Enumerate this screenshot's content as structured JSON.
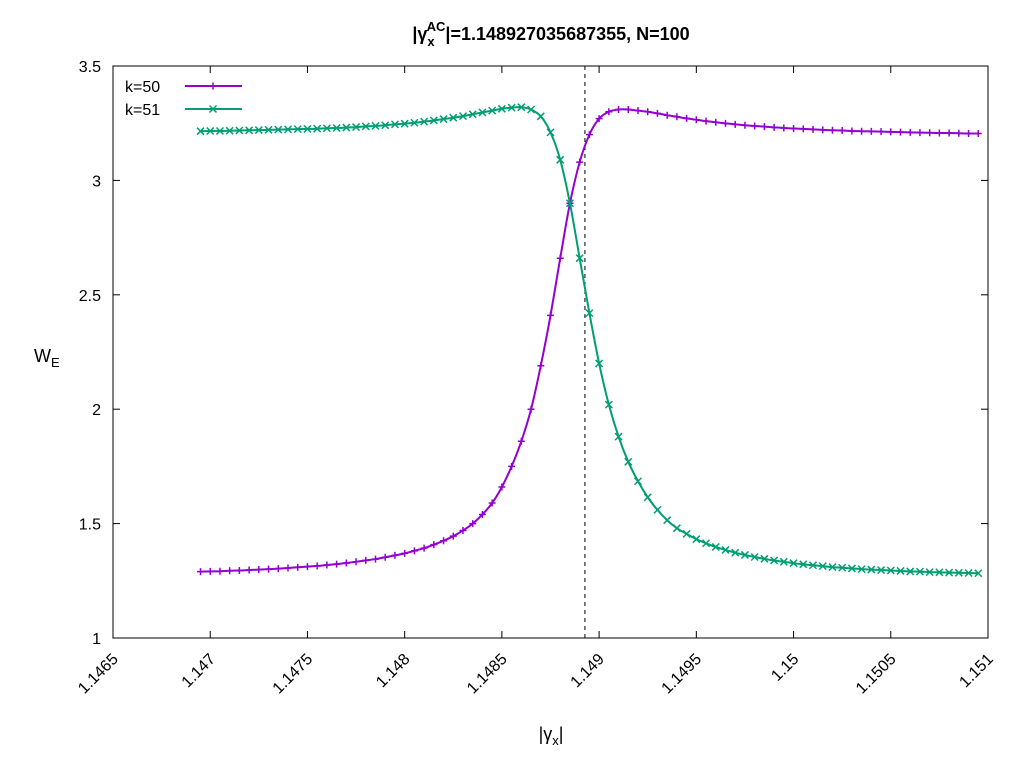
{
  "chart_data": {
    "type": "line",
    "title": {
      "prefix": "|",
      "symbol": "γ",
      "symbol_sub": "x",
      "symbol_sup": "AC",
      "suffix": "|=1.148927035687355, N=100"
    },
    "xlabel": {
      "prefix": "|",
      "symbol": "γ",
      "sub": "x",
      "suffix": "|"
    },
    "ylabel": {
      "main": "W",
      "sub": "E"
    },
    "xlim": [
      1.1465,
      1.151
    ],
    "ylim": [
      1,
      3.5
    ],
    "x_ticks": [
      1.1465,
      1.147,
      1.1475,
      1.148,
      1.1485,
      1.149,
      1.1495,
      1.15,
      1.1505,
      1.151
    ],
    "x_tick_labels": [
      "1.1465",
      "1.147",
      "1.1475",
      "1.148",
      "1.1485",
      "1.149",
      "1.1495",
      "1.15",
      "1.1505",
      "1.151"
    ],
    "y_ticks": [
      1,
      1.5,
      2,
      2.5,
      3,
      3.5
    ],
    "y_tick_labels": [
      "1",
      "1.5",
      "2",
      "2.5",
      "3",
      "3.5"
    ],
    "vline": 1.148927035687355,
    "grid": false,
    "legend_position": "top-left",
    "x": [
      1.14695,
      1.147,
      1.14705,
      1.1471,
      1.14715,
      1.1472,
      1.14725,
      1.1473,
      1.14735,
      1.1474,
      1.14745,
      1.1475,
      1.14755,
      1.1476,
      1.14765,
      1.1477,
      1.14775,
      1.1478,
      1.14785,
      1.1479,
      1.14795,
      1.148,
      1.14805,
      1.1481,
      1.14815,
      1.1482,
      1.14825,
      1.1483,
      1.14835,
      1.1484,
      1.14845,
      1.1485,
      1.14855,
      1.1486,
      1.14865,
      1.1487,
      1.14875,
      1.1488,
      1.14885,
      1.1489,
      1.14895,
      1.149,
      1.14905,
      1.1491,
      1.14915,
      1.1492,
      1.14925,
      1.1493,
      1.14935,
      1.1494,
      1.14945,
      1.1495,
      1.14955,
      1.1496,
      1.14965,
      1.1497,
      1.14975,
      1.1498,
      1.14985,
      1.1499,
      1.14995,
      1.15,
      1.15005,
      1.1501,
      1.15015,
      1.1502,
      1.15025,
      1.1503,
      1.15035,
      1.1504,
      1.15045,
      1.1505,
      1.15055,
      1.1506,
      1.15065,
      1.1507,
      1.15075,
      1.1508,
      1.15085,
      1.1509,
      1.15095
    ],
    "series": [
      {
        "name": "k=50",
        "color": "#9400d3",
        "marker": "plus",
        "values": [
          1.29,
          1.291,
          1.292,
          1.294,
          1.295,
          1.297,
          1.299,
          1.301,
          1.303,
          1.306,
          1.309,
          1.312,
          1.315,
          1.319,
          1.323,
          1.328,
          1.333,
          1.339,
          1.345,
          1.353,
          1.361,
          1.37,
          1.381,
          1.393,
          1.408,
          1.425,
          1.445,
          1.47,
          1.5,
          1.54,
          1.59,
          1.66,
          1.75,
          1.86,
          2.0,
          2.19,
          2.41,
          2.66,
          2.9,
          3.08,
          3.2,
          3.27,
          3.3,
          3.31,
          3.31,
          3.305,
          3.3,
          3.293,
          3.285,
          3.278,
          3.271,
          3.265,
          3.259,
          3.254,
          3.249,
          3.245,
          3.241,
          3.238,
          3.235,
          3.232,
          3.229,
          3.227,
          3.225,
          3.223,
          3.221,
          3.219,
          3.218,
          3.216,
          3.215,
          3.214,
          3.213,
          3.212,
          3.211,
          3.21,
          3.209,
          3.208,
          3.207,
          3.207,
          3.206,
          3.205,
          3.205
        ]
      },
      {
        "name": "k=51",
        "color": "#009e73",
        "marker": "cross",
        "values": [
          3.215,
          3.216,
          3.216,
          3.217,
          3.218,
          3.219,
          3.22,
          3.221,
          3.222,
          3.223,
          3.224,
          3.225,
          3.226,
          3.228,
          3.229,
          3.231,
          3.233,
          3.236,
          3.238,
          3.241,
          3.245,
          3.248,
          3.252,
          3.257,
          3.262,
          3.268,
          3.274,
          3.281,
          3.289,
          3.297,
          3.305,
          3.313,
          3.318,
          3.32,
          3.31,
          3.28,
          3.21,
          3.09,
          2.9,
          2.66,
          2.42,
          2.2,
          2.02,
          1.88,
          1.77,
          1.685,
          1.615,
          1.56,
          1.515,
          1.48,
          1.455,
          1.432,
          1.414,
          1.398,
          1.385,
          1.373,
          1.363,
          1.354,
          1.346,
          1.339,
          1.333,
          1.327,
          1.322,
          1.318,
          1.314,
          1.31,
          1.307,
          1.304,
          1.301,
          1.299,
          1.297,
          1.295,
          1.293,
          1.291,
          1.29,
          1.288,
          1.287,
          1.286,
          1.285,
          1.284,
          1.283
        ]
      }
    ]
  }
}
